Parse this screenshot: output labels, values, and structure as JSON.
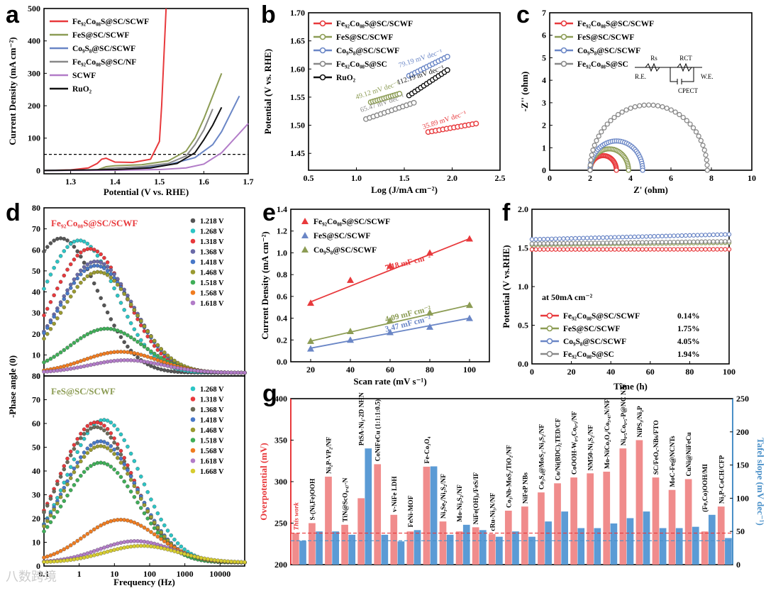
{
  "watermark": "八数跨境",
  "panels": {
    "a": {
      "letter": "a",
      "chart_data": {
        "type": "line",
        "xlabel": "Potential (V vs. RHE)",
        "ylabel": "Current Density (mA cm⁻²)",
        "xlim": [
          1.24,
          1.7
        ],
        "ylim": [
          -10,
          500
        ],
        "xticks": [
          1.3,
          1.4,
          1.5,
          1.6,
          1.7
        ],
        "yticks": [
          0,
          100,
          200,
          300,
          400,
          500
        ],
        "reference_line": 50,
        "series": [
          {
            "name": "Fe₉₂Co₀₈S@SC/SCWF",
            "color": "#e8393c",
            "x": [
              1.24,
              1.3,
              1.34,
              1.36,
              1.37,
              1.38,
              1.39,
              1.4,
              1.44,
              1.48,
              1.5,
              1.505,
              1.51,
              1.515
            ],
            "y": [
              0,
              2,
              8,
              22,
              35,
              38,
              32,
              26,
              25,
              35,
              90,
              200,
              350,
              500
            ]
          },
          {
            "name": "FeS@SC/SCWF",
            "color": "#8c9c54",
            "x": [
              1.24,
              1.36,
              1.38,
              1.4,
              1.46,
              1.52,
              1.56,
              1.58,
              1.6,
              1.62,
              1.64
            ],
            "y": [
              0,
              2,
              12,
              15,
              18,
              30,
              60,
              100,
              160,
              230,
              300
            ]
          },
          {
            "name": "Co₉S₈@SC/SCWF",
            "color": "#6a86c6",
            "x": [
              1.24,
              1.4,
              1.46,
              1.52,
              1.58,
              1.62,
              1.64,
              1.66,
              1.68
            ],
            "y": [
              0,
              3,
              8,
              18,
              40,
              80,
              120,
              175,
              230
            ]
          },
          {
            "name": "Fe₉₂Co₀₈S@SC/NF",
            "color": "#888888",
            "x": [
              1.24,
              1.36,
              1.38,
              1.4,
              1.46,
              1.52,
              1.56,
              1.58,
              1.6,
              1.62
            ],
            "y": [
              0,
              2,
              6,
              8,
              12,
              22,
              45,
              80,
              125,
              190
            ]
          },
          {
            "name": "SCWF",
            "color": "#b27cc8",
            "x": [
              1.24,
              1.4,
              1.5,
              1.56,
              1.6,
              1.64,
              1.67,
              1.7
            ],
            "y": [
              0,
              1,
              3,
              8,
              20,
              55,
              100,
              145
            ]
          },
          {
            "name": "RuO₂",
            "color": "#111111",
            "x": [
              1.24,
              1.4,
              1.48,
              1.54,
              1.58,
              1.6,
              1.62,
              1.64
            ],
            "y": [
              0,
              3,
              8,
              22,
              55,
              95,
              140,
              195
            ]
          }
        ]
      }
    },
    "b": {
      "letter": "b",
      "chart_data": {
        "type": "line",
        "xlabel": "Log (J/mA cm⁻²)",
        "ylabel": "Potential (V vs. RHE)",
        "xlim": [
          0.5,
          2.5
        ],
        "ylim": [
          1.42,
          1.7
        ],
        "xticks": [
          0.5,
          1.0,
          1.5,
          2.0,
          2.5
        ],
        "yticks": [
          1.45,
          1.5,
          1.55,
          1.6,
          1.65,
          1.7
        ],
        "series": [
          {
            "name": "Fe₉₂Co₀₈S@SC/SCWF",
            "color": "#e8393c",
            "x": [
              1.75,
              2.25
            ],
            "y": [
              1.488,
              1.503
            ],
            "slope_label": "35.89 mV dec⁻¹"
          },
          {
            "name": "FeS@SC/SCWF",
            "color": "#8c9c54",
            "x": [
              1.15,
              1.45
            ],
            "y": [
              1.541,
              1.556
            ],
            "slope_label": "49.12 mV dec⁻¹"
          },
          {
            "name": "Co₉S₈@SC/SCWF",
            "color": "#6a86c6",
            "x": [
              1.55,
              1.95
            ],
            "y": [
              1.588,
              1.622
            ],
            "slope_label": "79.19 mV dec⁻¹"
          },
          {
            "name": "Fe₉₂Co₀₈S@SC",
            "color": "#888888",
            "x": [
              1.1,
              1.6
            ],
            "y": [
              1.511,
              1.54
            ],
            "slope_label": "65.47 mV dec⁻¹"
          },
          {
            "name": "RuO₂",
            "color": "#111111",
            "x": [
              1.55,
              1.95
            ],
            "y": [
              1.553,
              1.598
            ],
            "slope_label": "112.19 mV dec⁻¹"
          }
        ]
      }
    },
    "c": {
      "letter": "c",
      "chart_data": {
        "type": "scatter",
        "xlabel": "Z' (ohm)",
        "ylabel": "-Z'' (ohm)",
        "xlim": [
          0,
          10
        ],
        "ylim": [
          0,
          7
        ],
        "xticks": [
          0,
          2,
          4,
          6,
          8,
          10
        ],
        "yticks": [
          0,
          1,
          2,
          3,
          4,
          5,
          6,
          7
        ],
        "circuit_labels": [
          "Rs",
          "RCT",
          "R.E.",
          "W.E.",
          "CPECT"
        ],
        "series": [
          {
            "name": "Fe₉₂Co₀₈S@SC/SCWF",
            "color": "#e8393c",
            "r_start": 2.0,
            "r_end": 3.3
          },
          {
            "name": "FeS@SC/SCWF",
            "color": "#8c9c54",
            "r_start": 2.0,
            "r_end": 3.9
          },
          {
            "name": "Co₉S₈@SC/SCWF",
            "color": "#6a86c6",
            "r_start": 2.0,
            "r_end": 4.6
          },
          {
            "name": "Fe₉₂Co₀₈S@SC",
            "color": "#888888",
            "r_start": 2.0,
            "r_end": 7.8
          }
        ]
      }
    },
    "d": {
      "letter": "d",
      "chart_data": {
        "type": "scatter",
        "xlabel": "Frequency (Hz)",
        "ylabel": "-Phase angle (0)",
        "xscale": "log",
        "xlim": [
          0.1,
          50000
        ],
        "ylim_top": [
          0,
          80
        ],
        "ylim_bottom": [
          0,
          80
        ],
        "xticks": [
          "0.1",
          "1",
          "10",
          "100",
          "1000",
          "10000"
        ],
        "yticks": [
          0,
          10,
          20,
          30,
          40,
          50,
          60,
          70,
          80
        ],
        "top_title": "Fe₉₂Co₀₈S@SC/SCWF",
        "bottom_title": "FeS@SC/SCWF",
        "top_series": [
          {
            "name": "1.218 V",
            "color": "#555555",
            "peak": 64,
            "fpeak": 0.3
          },
          {
            "name": "1.268 V",
            "color": "#2cc5c5",
            "peak": 63,
            "fpeak": 1.0
          },
          {
            "name": "1.318 V",
            "color": "#e8393c",
            "peak": 59,
            "fpeak": 2.0
          },
          {
            "name": "1.368 V",
            "color": "#6a6aa8",
            "peak": 53,
            "fpeak": 3.0
          },
          {
            "name": "1.418 V",
            "color": "#4878c8",
            "peak": 51,
            "fpeak": 3.0
          },
          {
            "name": "1.468 V",
            "color": "#9a9a30",
            "peak": 48,
            "fpeak": 3.5
          },
          {
            "name": "1.518 V",
            "color": "#3fae58",
            "peak": 21,
            "fpeak": 6.0
          },
          {
            "name": "1.568 V",
            "color": "#f07c20",
            "peak": 10,
            "fpeak": 15.0
          },
          {
            "name": "1.618 V",
            "color": "#b27cc8",
            "peak": 6,
            "fpeak": 22.0
          }
        ],
        "bottom_series": [
          {
            "name": "1.268 V",
            "color": "#2cc5c5",
            "peak": 60,
            "fpeak": 5.0
          },
          {
            "name": "1.318 V",
            "color": "#e8393c",
            "peak": 59,
            "fpeak": 3.0
          },
          {
            "name": "1.368 V",
            "color": "#6a6a58",
            "peak": 57,
            "fpeak": 3.0
          },
          {
            "name": "1.418 V",
            "color": "#4878c8",
            "peak": 51,
            "fpeak": 4.0
          },
          {
            "name": "1.468 V",
            "color": "#9a9a30",
            "peak": 49,
            "fpeak": 4.0
          },
          {
            "name": "1.518 V",
            "color": "#3fae58",
            "peak": 42,
            "fpeak": 4.0
          },
          {
            "name": "1.568 V",
            "color": "#f07c20",
            "peak": 18,
            "fpeak": 15.0
          },
          {
            "name": "1.618 V",
            "color": "#b27cc8",
            "peak": 9,
            "fpeak": 40.0
          },
          {
            "name": "1.668 V",
            "color": "#d6cc30",
            "peak": 7,
            "fpeak": 60.0
          }
        ]
      }
    },
    "e": {
      "letter": "e",
      "chart_data": {
        "type": "scatter",
        "xlabel": "Scan rate (mV s⁻¹)",
        "ylabel": "Current Density (mA cm⁻²)",
        "xlim": [
          10,
          110
        ],
        "ylim": [
          0.0,
          1.4
        ],
        "xticks": [
          20,
          40,
          60,
          80,
          100
        ],
        "yticks": [
          0.0,
          0.2,
          0.4,
          0.6,
          0.8,
          1.0,
          1.2,
          1.4
        ],
        "x": [
          20,
          40,
          60,
          80,
          100
        ],
        "series": [
          {
            "name": "Fe₉₂Co₀₈S@SC/SCWF",
            "color": "#e8393c",
            "values": [
              0.54,
              0.75,
              0.88,
              1.0,
              1.13
            ],
            "fit": [
              0.55,
              1.13
            ],
            "slope_label": "7.18 mF cm⁻²"
          },
          {
            "name": "FeS@SC/SCWF",
            "color": "#6a86c6",
            "values": [
              0.12,
              0.2,
              0.27,
              0.32,
              0.4
            ],
            "fit": [
              0.125,
              0.4
            ],
            "slope_label": "3.47 mF cm⁻²"
          },
          {
            "name": "Co₉S₈@SC/SCWF",
            "color": "#8c9c54",
            "values": [
              0.19,
              0.28,
              0.38,
              0.45,
              0.52
            ],
            "fit": [
              0.19,
              0.52
            ],
            "slope_label": "4.09 mF cm⁻²"
          }
        ]
      }
    },
    "f": {
      "letter": "f",
      "chart_data": {
        "type": "scatter",
        "xlabel": "Time (h)",
        "ylabel": "Potential (V vs.RHE)",
        "xlim": [
          0,
          100
        ],
        "ylim": [
          0.0,
          2.0
        ],
        "xticks": [
          0,
          20,
          40,
          60,
          80,
          100
        ],
        "yticks": [
          0.0,
          0.5,
          1.0,
          1.5,
          2.0
        ],
        "annotation": "at 50mA cm⁻²",
        "series": [
          {
            "name": "Fe₉₂Co₀₈S@SC/SCWF",
            "color": "#e8393c",
            "start": 1.48,
            "end": 1.482,
            "pct": "0.14%"
          },
          {
            "name": "FeS@SC/SCWF",
            "color": "#8c9c54",
            "start": 1.54,
            "end": 1.567,
            "pct": "1.75%"
          },
          {
            "name": "Co₉S₈@SC/SCWF",
            "color": "#6a86c6",
            "start": 1.61,
            "end": 1.675,
            "pct": "4.05%"
          },
          {
            "name": "Fe₉₂Co₀₈S@SC",
            "color": "#888888",
            "start": 1.555,
            "end": 1.585,
            "pct": "1.94%"
          }
        ]
      }
    },
    "g": {
      "letter": "g",
      "chart_data": {
        "type": "bar",
        "ylabel_left": "Overpotential (mV)",
        "ylabel_right": "Tafel slope (mV dec⁻¹)",
        "ylim_left": [
          200,
          400
        ],
        "ylim_right": [
          0,
          250
        ],
        "yticks_left": [
          200,
          250,
          300,
          350,
          400
        ],
        "yticks_right": [
          0,
          50,
          100,
          150,
          200,
          250
        ],
        "ref_left": 238,
        "ref_right": 36,
        "categories": [
          "This work",
          "S-(Ni,Fe)OOH",
          "Ni₂P-VP₂/NF",
          "TiN@ScO₀.₄₇-N",
          "PtSA-Ni₃-2D NHN",
          "CoNiFeCu (1:1:1:0.5)",
          "v-NiFe LDH",
          "FeNi-MOF",
          "Fe-Co₃O₄",
          "Ni₃Se₂/Ni₃S₂/NF",
          "Mo-Ni₃S₂/NF",
          "NiFe(OH)ₓ/FeS/IF",
          "cRu-Ni₃N/NF",
          "Co₃Nb-MoS₂/TiO₂/NF",
          "NiFeP NBs",
          "Co₃S₄@MoS₂-Ni₃S₂/NF",
          "Co/Ni(BDC)₂TED/CF",
          "CoOOH-W₀.₅Co₀.₅/NF",
          "NM50-Ni₃S₂/NF",
          "Mo-NiCo₂O₄/Co₅.₄₇N/NF",
          "Ni₀.₅Co₀.₅-P@NC NA/NF",
          "NiPS₃/Ni₂P",
          "SC/FeOₓ-NBs/FTO",
          "MoC-Fe@NCNTs",
          "CuNi@NiFeCu",
          "(Fe,Co)OOH/MI",
          "Ni₂P-CoCH/CFP"
        ],
        "overpotential": [
          238,
          250,
          306,
          248,
          280,
          321,
          260,
          240,
          318,
          252,
          240,
          245,
          237,
          265,
          270,
          287,
          298,
          305,
          310,
          312,
          340,
          350,
          305,
          290,
          303,
          240,
          270
        ],
        "tafel": [
          36,
          50,
          50,
          45,
          175,
          45,
          35,
          52,
          148,
          45,
          60,
          52,
          42,
          50,
          42,
          65,
          80,
          55,
          55,
          62,
          70,
          80,
          55,
          55,
          57,
          75,
          40
        ]
      }
    }
  }
}
